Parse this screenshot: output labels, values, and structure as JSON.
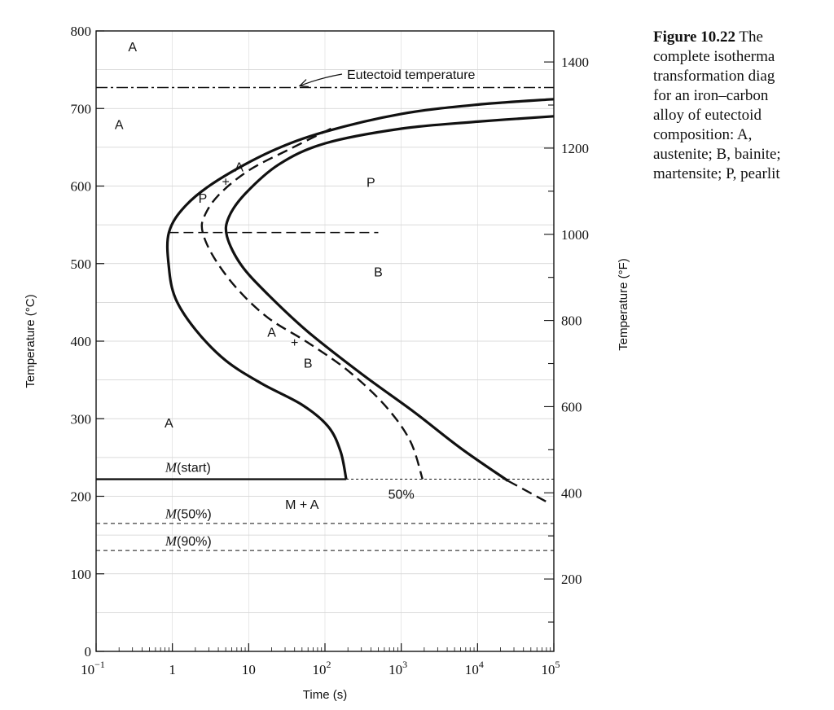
{
  "caption": {
    "figure_label": "Figure 10.22",
    "lines": [
      "The",
      "complete isotherma",
      "transformation diag",
      "for an iron–carbon",
      "alloy of eutectoid",
      "composition: A,",
      "austenite; B, bainite;",
      "martensite; P, pearlit"
    ]
  },
  "chart_data": {
    "type": "line",
    "title": "",
    "xlabel": "Time (s)",
    "ylabel": "Temperature (°C)",
    "y2label": "Temperature (°F)",
    "x_scale": "log",
    "xlim": [
      0.1,
      100000
    ],
    "ylim": [
      0,
      800
    ],
    "y2lim": [
      32,
      1472
    ],
    "x_ticks": [
      {
        "value": 0.1,
        "base": "10",
        "exp": "−1"
      },
      {
        "value": 1,
        "base": "1",
        "exp": ""
      },
      {
        "value": 10,
        "base": "10",
        "exp": ""
      },
      {
        "value": 100,
        "base": "10",
        "exp": "2"
      },
      {
        "value": 1000,
        "base": "10",
        "exp": "3"
      },
      {
        "value": 10000,
        "base": "10",
        "exp": "4"
      },
      {
        "value": 100000,
        "base": "10",
        "exp": "5"
      }
    ],
    "y_ticks": [
      0,
      100,
      200,
      300,
      400,
      500,
      600,
      700,
      800
    ],
    "y_tick_labels": [
      "0",
      "100",
      "200",
      "300",
      "400",
      "500",
      "600",
      "700",
      "800"
    ],
    "y2_ticks": [
      200,
      400,
      600,
      800,
      1000,
      1200,
      1400
    ],
    "y2_tick_labels": [
      "200",
      "400",
      "600",
      "800",
      "1000",
      "1200",
      "1400"
    ],
    "grid": true,
    "series": [
      {
        "name": "",
        "style": "solid",
        "points": [
          [
            100000,
            712
          ],
          [
            10000,
            705
          ],
          [
            1000,
            693
          ],
          [
            100,
            670
          ],
          [
            20,
            645
          ],
          [
            4,
            608
          ],
          [
            1.5,
            575
          ],
          [
            0.9,
            540
          ],
          [
            0.9,
            495
          ],
          [
            1.1,
            455
          ],
          [
            2,
            415
          ],
          [
            5,
            375
          ],
          [
            15,
            345
          ],
          [
            50,
            318
          ],
          [
            110,
            290
          ],
          [
            160,
            258
          ],
          [
            190,
            222
          ]
        ]
      },
      {
        "name": "50%",
        "style": "dashed",
        "points": [
          [
            120,
            674
          ],
          [
            35,
            648
          ],
          [
            10,
            620
          ],
          [
            4,
            588
          ],
          [
            2.6,
            560
          ],
          [
            2.5,
            540
          ],
          [
            3.5,
            508
          ],
          [
            7,
            468
          ],
          [
            18,
            430
          ],
          [
            60,
            398
          ],
          [
            200,
            362
          ],
          [
            600,
            318
          ],
          [
            1300,
            272
          ],
          [
            1900,
            222
          ]
        ]
      },
      {
        "name": "",
        "style": "solid",
        "points": [
          [
            100000,
            690
          ],
          [
            10000,
            683
          ],
          [
            1000,
            674
          ],
          [
            100,
            655
          ],
          [
            25,
            628
          ],
          [
            9,
            590
          ],
          [
            5.5,
            560
          ],
          [
            5.2,
            535
          ],
          [
            8,
            498
          ],
          [
            18,
            460
          ],
          [
            60,
            412
          ],
          [
            300,
            358
          ],
          [
            1500,
            308
          ],
          [
            6000,
            262
          ],
          [
            25000,
            220
          ]
        ]
      },
      {
        "name": "",
        "style": "dashed",
        "points": [
          [
            25000,
            220
          ],
          [
            80000,
            193
          ]
        ]
      }
    ],
    "horizontal_lines": [
      {
        "y": 727,
        "style": "dashdot",
        "label": "Eutectoid temperature"
      },
      {
        "y": 222,
        "style": "solid",
        "x_end": 190,
        "label": "M(start)"
      },
      {
        "y": 222,
        "style": "dotted",
        "x_start": 190
      },
      {
        "y": 165,
        "style": "dashed",
        "label": "M(50%)"
      },
      {
        "y": 130,
        "style": "dashed",
        "label": "M(90%)"
      }
    ],
    "nose_line": {
      "y": 540,
      "x_start": 0.9,
      "x_end": 500,
      "style": "dashed"
    },
    "region_labels": [
      {
        "text": "A",
        "x": 0.3,
        "y": 780
      },
      {
        "text": "A",
        "x": 0.2,
        "y": 680
      },
      {
        "text": "A",
        "x": 0.9,
        "y": 295
      },
      {
        "text": "A",
        "x": 7.5,
        "y": 625
      },
      {
        "text": "P",
        "x": 2.5,
        "y": 585
      },
      {
        "text": "P",
        "x": 400,
        "y": 605
      },
      {
        "text": "B",
        "x": 500,
        "y": 490
      },
      {
        "text": "A",
        "x": 20,
        "y": 412
      },
      {
        "text": "B",
        "x": 60,
        "y": 372
      },
      {
        "text": "M + A",
        "x": 50,
        "y": 190
      },
      {
        "text": "50%",
        "x": 1000,
        "y": 203
      }
    ],
    "m_labels": [
      {
        "letter": "M",
        "rest": "(start)",
        "x": 0.6,
        "y": 238
      },
      {
        "letter": "M",
        "rest": "(50%)",
        "x": 0.6,
        "y": 178
      },
      {
        "letter": "M",
        "rest": "(90%)",
        "x": 0.6,
        "y": 143
      }
    ],
    "markers": [
      {
        "x": 5,
        "y": 605
      },
      {
        "x": 40,
        "y": 398
      }
    ]
  }
}
